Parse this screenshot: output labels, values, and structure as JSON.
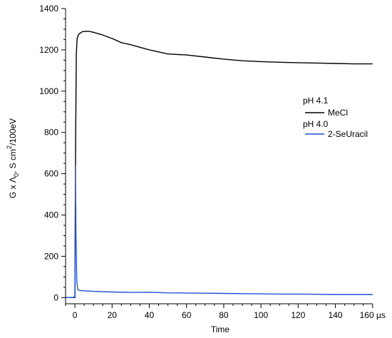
{
  "chart_data": {
    "type": "line",
    "title": "",
    "xlabel": "Time",
    "ylabel_parts": {
      "g_times_lambda": "G x Λ",
      "sub": "0",
      "unit_pre": ", S cm",
      "sup": "2",
      "unit_post": "/100eV"
    },
    "xlim": [
      -5,
      162
    ],
    "ylim": [
      -30,
      1400
    ],
    "x_ticks": [
      0,
      20,
      40,
      60,
      80,
      100,
      120,
      140,
      160
    ],
    "x_tick_labels": [
      "0",
      "20",
      "40",
      "60",
      "80",
      "100",
      "120",
      "140",
      "160 µs"
    ],
    "y_ticks": [
      0,
      200,
      400,
      600,
      800,
      1000,
      1200,
      1400
    ],
    "y_tick_labels": [
      "0",
      "200",
      "400",
      "600",
      "800",
      "1000",
      "1200",
      "1400"
    ],
    "grid": false,
    "legend_position": "right",
    "series": [
      {
        "name": "MeCl",
        "group_label": "pH 4.1",
        "color": "#000000",
        "x": [
          -5,
          -1,
          0,
          0.4,
          0.8,
          1.2,
          2,
          3,
          4,
          6,
          8,
          10,
          15,
          20,
          25,
          30,
          40,
          50,
          60,
          70,
          80,
          90,
          100,
          110,
          120,
          130,
          140,
          150,
          160
        ],
        "y": [
          0,
          0,
          0,
          760,
          1180,
          1255,
          1275,
          1282,
          1288,
          1290,
          1289,
          1285,
          1272,
          1255,
          1235,
          1225,
          1200,
          1180,
          1175,
          1165,
          1155,
          1147,
          1143,
          1140,
          1138,
          1136,
          1134,
          1132,
          1132
        ]
      },
      {
        "name": "2-SeUracil",
        "group_label": "pH 4.0",
        "color": "#1f4fd8",
        "x": [
          -5,
          -1,
          0,
          0.3,
          0.6,
          1.0,
          1.5,
          2,
          3,
          5,
          10,
          20,
          30,
          40,
          50,
          60,
          70,
          80,
          90,
          100,
          110,
          120,
          130,
          140,
          150,
          160
        ],
        "y": [
          0,
          0,
          5,
          640,
          300,
          80,
          40,
          36,
          34,
          33,
          30,
          27,
          25,
          26,
          23,
          22,
          21,
          20,
          19,
          18,
          17,
          17,
          16,
          15,
          15,
          15
        ]
      }
    ]
  }
}
